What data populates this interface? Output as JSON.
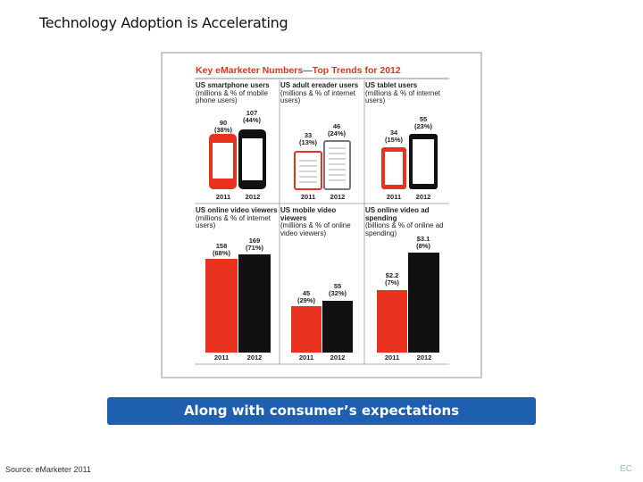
{
  "slide": {
    "title": "Technology Adoption is Accelerating",
    "infographic": {
      "heading": "Key eMarketer Numbers—Top Trends for 2012",
      "panels": [
        {
          "title": "US smartphone users",
          "subtitle": "(millions & % of mobile phone users)",
          "items": [
            {
              "year": "2011",
              "value": "90",
              "share": "(38%)"
            },
            {
              "year": "2012",
              "value": "107",
              "share": "(44%)"
            }
          ]
        },
        {
          "title": "US adult ereader users",
          "subtitle": "(millions & % of internet users)",
          "items": [
            {
              "year": "2011",
              "value": "33",
              "share": "(13%)"
            },
            {
              "year": "2012",
              "value": "46",
              "share": "(24%)"
            }
          ]
        },
        {
          "title": "US tablet users",
          "subtitle": "(millions & % of internet users)",
          "items": [
            {
              "year": "2011",
              "value": "34",
              "share": "(15%)"
            },
            {
              "year": "2012",
              "value": "55",
              "share": "(23%)"
            }
          ]
        },
        {
          "title": "US online video viewers",
          "subtitle": "(millions & % of internet users)",
          "items": [
            {
              "year": "2011",
              "value": "158",
              "share": "(68%)"
            },
            {
              "year": "2012",
              "value": "169",
              "share": "(71%)"
            }
          ]
        },
        {
          "title": "US mobile video viewers",
          "subtitle": "(millions & % of online video viewers)",
          "items": [
            {
              "year": "2011",
              "value": "45",
              "share": "(29%)"
            },
            {
              "year": "2012",
              "value": "55",
              "share": "(32%)"
            }
          ]
        },
        {
          "title": "US online video ad spending",
          "subtitle": "(billions & % of online ad spending)",
          "items": [
            {
              "year": "2011",
              "value": "$2.2",
              "share": "(7%)"
            },
            {
              "year": "2012",
              "value": "$3.1",
              "share": "(8%)"
            }
          ]
        }
      ]
    },
    "banner": "Along with consumer’s expectations",
    "source": "Source: eMarketer 2011",
    "footer_mark": "EC"
  }
}
